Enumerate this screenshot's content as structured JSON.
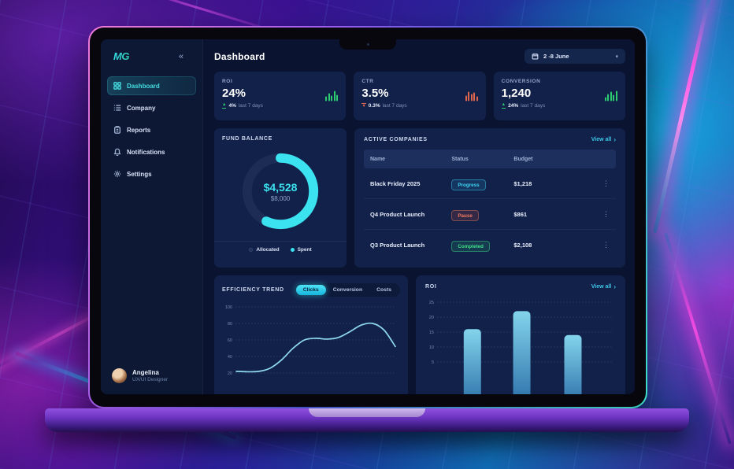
{
  "header": {
    "title": "Dashboard",
    "date_range": "2 -8 June"
  },
  "sidebar": {
    "logo": "MG",
    "collapse_glyph": "«",
    "items": [
      {
        "label": "Dashboard",
        "icon": "grid-icon",
        "active": true
      },
      {
        "label": "Company",
        "icon": "list-icon",
        "active": false
      },
      {
        "label": "Reports",
        "icon": "clipboard-icon",
        "active": false
      },
      {
        "label": "Notifications",
        "icon": "bell-icon",
        "active": false
      },
      {
        "label": "Settings",
        "icon": "gear-icon",
        "active": false
      }
    ],
    "user": {
      "name": "Angelina",
      "role": "UX/UI Designer"
    }
  },
  "stats": [
    {
      "label": "ROI",
      "value": "24%",
      "delta": "4%",
      "delta_suffix": "last 7 days",
      "trend": "up",
      "accent": "#2ecc71"
    },
    {
      "label": "CTR",
      "value": "3.5%",
      "delta": "0.3%",
      "delta_suffix": "last 7 days",
      "trend": "down",
      "accent": "#e0654f"
    },
    {
      "label": "CONVERSION",
      "value": "1,240",
      "delta": "24%",
      "delta_suffix": "last 7 days",
      "trend": "up",
      "accent": "#2ecc71"
    }
  ],
  "fund_balance": {
    "title": "FUND BALANCE",
    "center_value": "$4,528",
    "center_sub": "$8,000",
    "legend": [
      {
        "label": "Allocated",
        "color": "#1c2c55"
      },
      {
        "label": "Spent",
        "color": "#3be2f0"
      }
    ]
  },
  "active_companies": {
    "title": "ACTIVE COMPANIES",
    "view_all": "View all",
    "chevron": "›",
    "columns": [
      "Name",
      "Status",
      "Budget"
    ],
    "rows": [
      {
        "name": "Black Friday 2025",
        "status": "Progress",
        "budget": "$1,218"
      },
      {
        "name": "Q4 Product Launch",
        "status": "Pause",
        "budget": "$861"
      },
      {
        "name": "Q3 Product Launch",
        "status": "Completed",
        "budget": "$2,108"
      }
    ]
  },
  "efficiency": {
    "title": "EFFICIENCY TREND",
    "tabs": [
      "Clicks",
      "Conversion",
      "Costs"
    ],
    "active_tab": "Clicks"
  },
  "roi_panel": {
    "title": "ROI",
    "view_all": "View all",
    "chevron": "›"
  },
  "icons": {
    "kebab": "⋮",
    "chevron_down": "▾",
    "chevron_right": "›",
    "arrow_up": "▲",
    "arrow_down": "▼"
  },
  "colors": {
    "accent_cyan": "#3be2f0",
    "green": "#2ecc71",
    "red": "#e0654f",
    "card_bg": "#122149",
    "screen_bg": "#0a1430",
    "link": "#3fc6e8"
  },
  "chart_data": [
    {
      "type": "pie",
      "subtype": "donut",
      "title": "FUND BALANCE",
      "labels": [
        "Spent",
        "Allocated"
      ],
      "values": [
        4528,
        3472
      ],
      "total": 8000,
      "center_value": "$4,528",
      "center_sub": "$8,000",
      "colors": [
        "#3be2f0",
        "#1c2c55"
      ],
      "legend_position": "bottom"
    },
    {
      "type": "line",
      "title": "EFFICIENCY TREND",
      "series": [
        {
          "name": "Clicks",
          "values": [
            22,
            21.5,
            22,
            26,
            36,
            50,
            60,
            62,
            61,
            63,
            70,
            78,
            80,
            72,
            52
          ]
        }
      ],
      "x": [
        0,
        1,
        2,
        3,
        4,
        5,
        6,
        7,
        8,
        9,
        10,
        11,
        12,
        13,
        14
      ],
      "ylim": [
        20,
        100
      ],
      "yticks": [
        20,
        40,
        60,
        80,
        100
      ],
      "grid": "dashed-horizontal",
      "color": "#8fd8ef"
    },
    {
      "type": "bar",
      "title": "ROI",
      "categories": [
        "1",
        "2",
        "3"
      ],
      "values": [
        16,
        22,
        14
      ],
      "ylim": [
        0,
        25
      ],
      "yticks": [
        5,
        10,
        15,
        20,
        25
      ],
      "grid": "dashed-horizontal",
      "bar_gradient": [
        "#83d4ec",
        "#2b6ea8"
      ]
    }
  ]
}
